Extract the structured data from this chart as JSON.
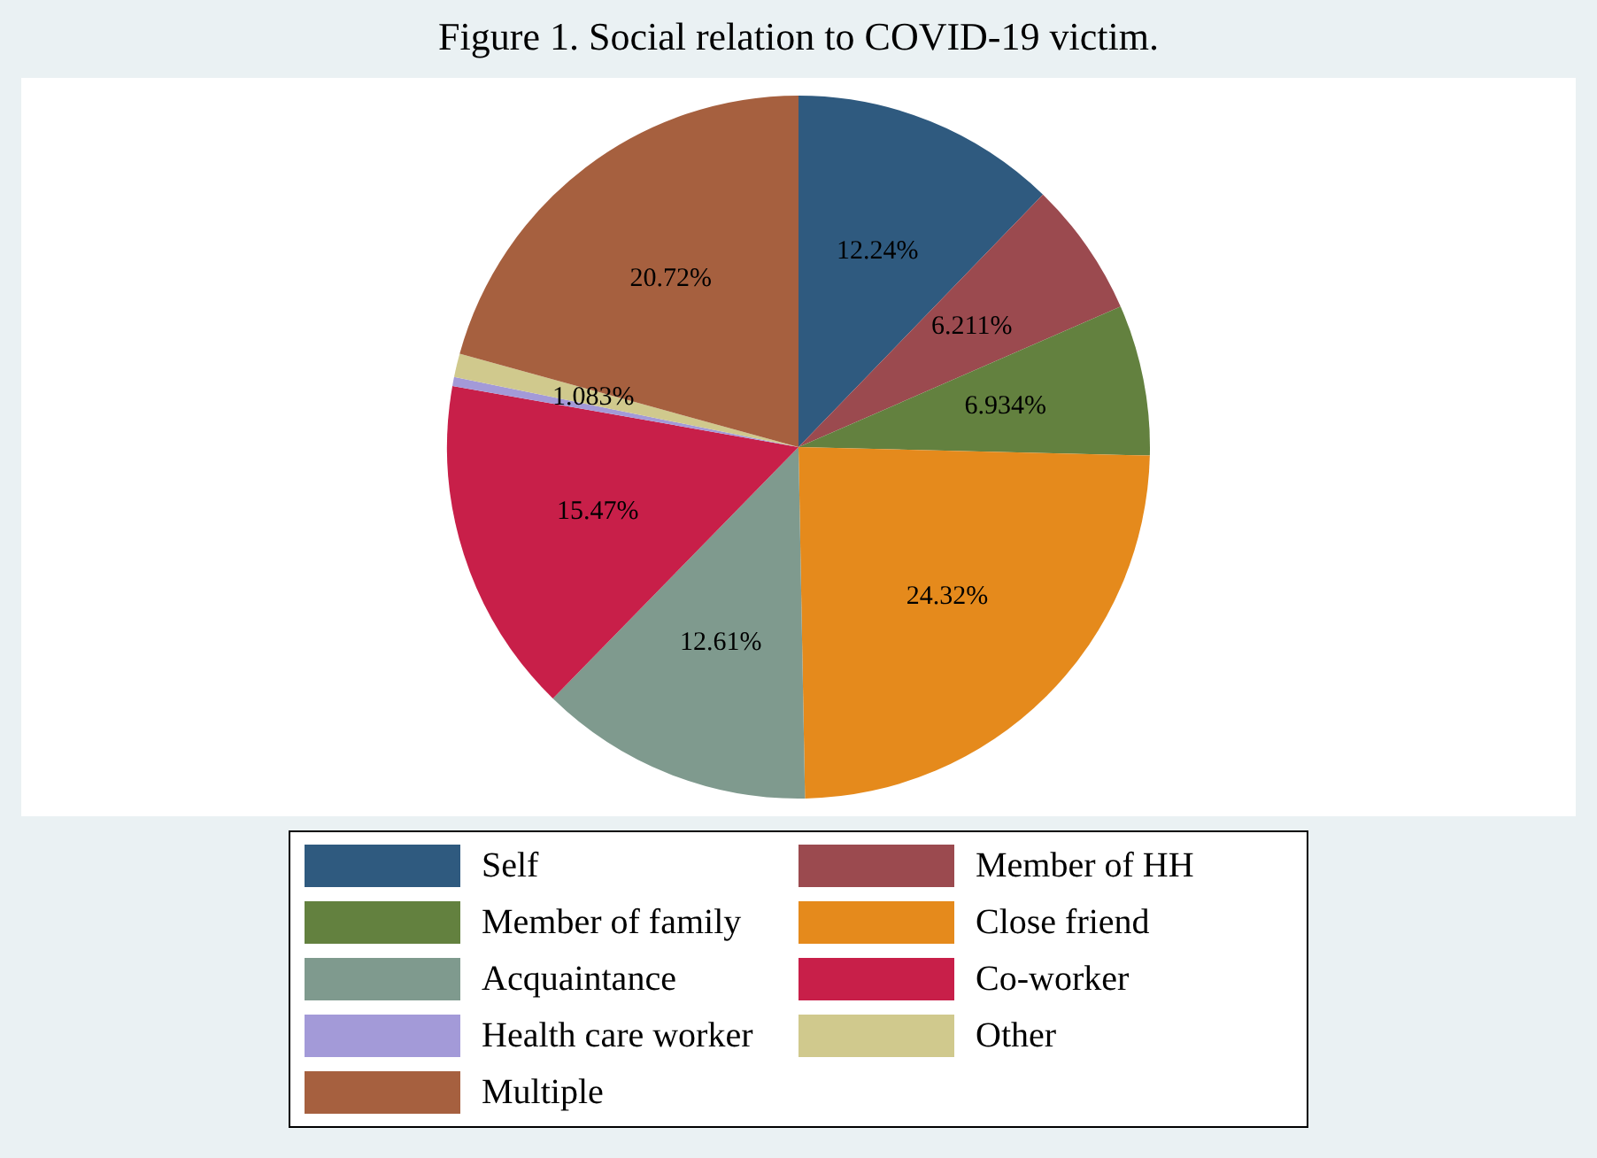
{
  "chart_data": {
    "type": "pie",
    "title": "Figure 1. Social relation to COVID-19 victim.",
    "categories": [
      "Self",
      "Member of HH",
      "Member of family",
      "Close friend",
      "Acquaintance",
      "Co-worker",
      "Health care worker",
      "Other",
      "Multiple"
    ],
    "values": [
      12.24,
      6.211,
      6.934,
      24.32,
      12.61,
      15.47,
      0.412,
      1.083,
      20.72
    ],
    "value_labels": [
      "12.24%",
      "6.211%",
      "6.934%",
      "24.32%",
      "12.61%",
      "15.47%",
      null,
      "1.083%",
      "20.72%"
    ],
    "colors": [
      "#2f5a7f",
      "#9b4a4f",
      "#63813f",
      "#e58a1c",
      "#7f9a8e",
      "#c81f49",
      "#a39ad8",
      "#d0c98d",
      "#a6603f"
    ],
    "legend": "bottom"
  }
}
